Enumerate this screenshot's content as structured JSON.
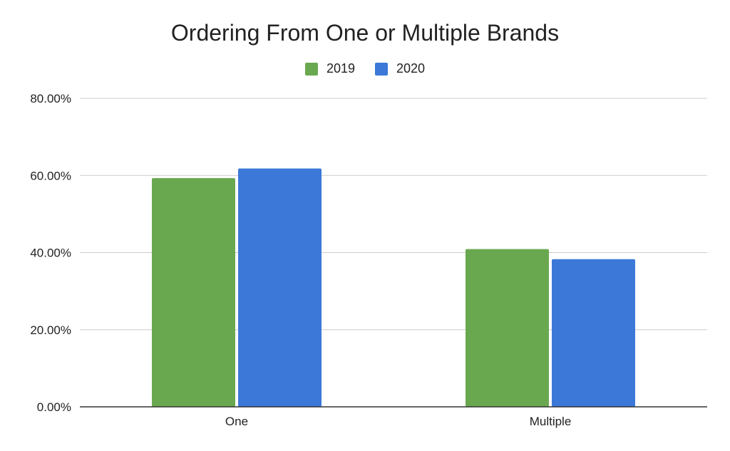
{
  "chart_data": {
    "type": "bar",
    "title": "Ordering From One or Multiple Brands",
    "categories": [
      "One",
      "Multiple"
    ],
    "series": [
      {
        "name": "2019",
        "color": "#6aa84f",
        "values": [
          59.3,
          40.9
        ]
      },
      {
        "name": "2020",
        "color": "#3c78d8",
        "values": [
          61.8,
          38.3
        ]
      }
    ],
    "ylim": [
      0,
      80
    ],
    "yticks": [
      0,
      20,
      40,
      60,
      80
    ],
    "ytick_labels": [
      "0.00%",
      "20.00%",
      "40.00%",
      "60.00%",
      "80.00%"
    ],
    "legend": "top",
    "grid": true
  }
}
